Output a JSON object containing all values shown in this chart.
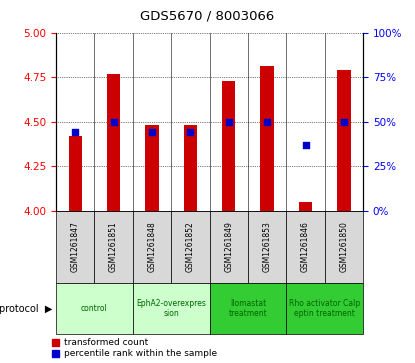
{
  "title": "GDS5670 / 8003066",
  "samples": [
    "GSM1261847",
    "GSM1261851",
    "GSM1261848",
    "GSM1261852",
    "GSM1261849",
    "GSM1261853",
    "GSM1261846",
    "GSM1261850"
  ],
  "red_values": [
    4.42,
    4.77,
    4.48,
    4.48,
    4.73,
    4.81,
    4.05,
    4.79
  ],
  "blue_values": [
    44,
    50,
    44,
    44,
    50,
    50,
    37,
    50
  ],
  "ylim_left": [
    4.0,
    5.0
  ],
  "ylim_right": [
    0,
    100
  ],
  "yticks_left": [
    4.0,
    4.25,
    4.5,
    4.75,
    5.0
  ],
  "yticks_right": [
    0,
    25,
    50,
    75,
    100
  ],
  "protocol_groups": [
    {
      "label": "control",
      "span": [
        0,
        2
      ],
      "color": "#ccffcc",
      "text_color": "#006600"
    },
    {
      "label": "EphA2-overexpres\nsion",
      "span": [
        2,
        4
      ],
      "color": "#ccffcc",
      "text_color": "#006600"
    },
    {
      "label": "Ilomastat\ntreatment",
      "span": [
        4,
        6
      ],
      "color": "#33cc33",
      "text_color": "#006600"
    },
    {
      "label": "Rho activator Calp\neptin treatment",
      "span": [
        6,
        8
      ],
      "color": "#33cc33",
      "text_color": "#006600"
    }
  ],
  "bar_color": "#cc0000",
  "dot_color": "#0000cc",
  "bar_width": 0.35,
  "dot_size": 25,
  "plot_bg": "#ffffff",
  "sample_cell_bg": "#d8d8d8",
  "legend_red_label": "transformed count",
  "legend_blue_label": "percentile rank within the sample"
}
